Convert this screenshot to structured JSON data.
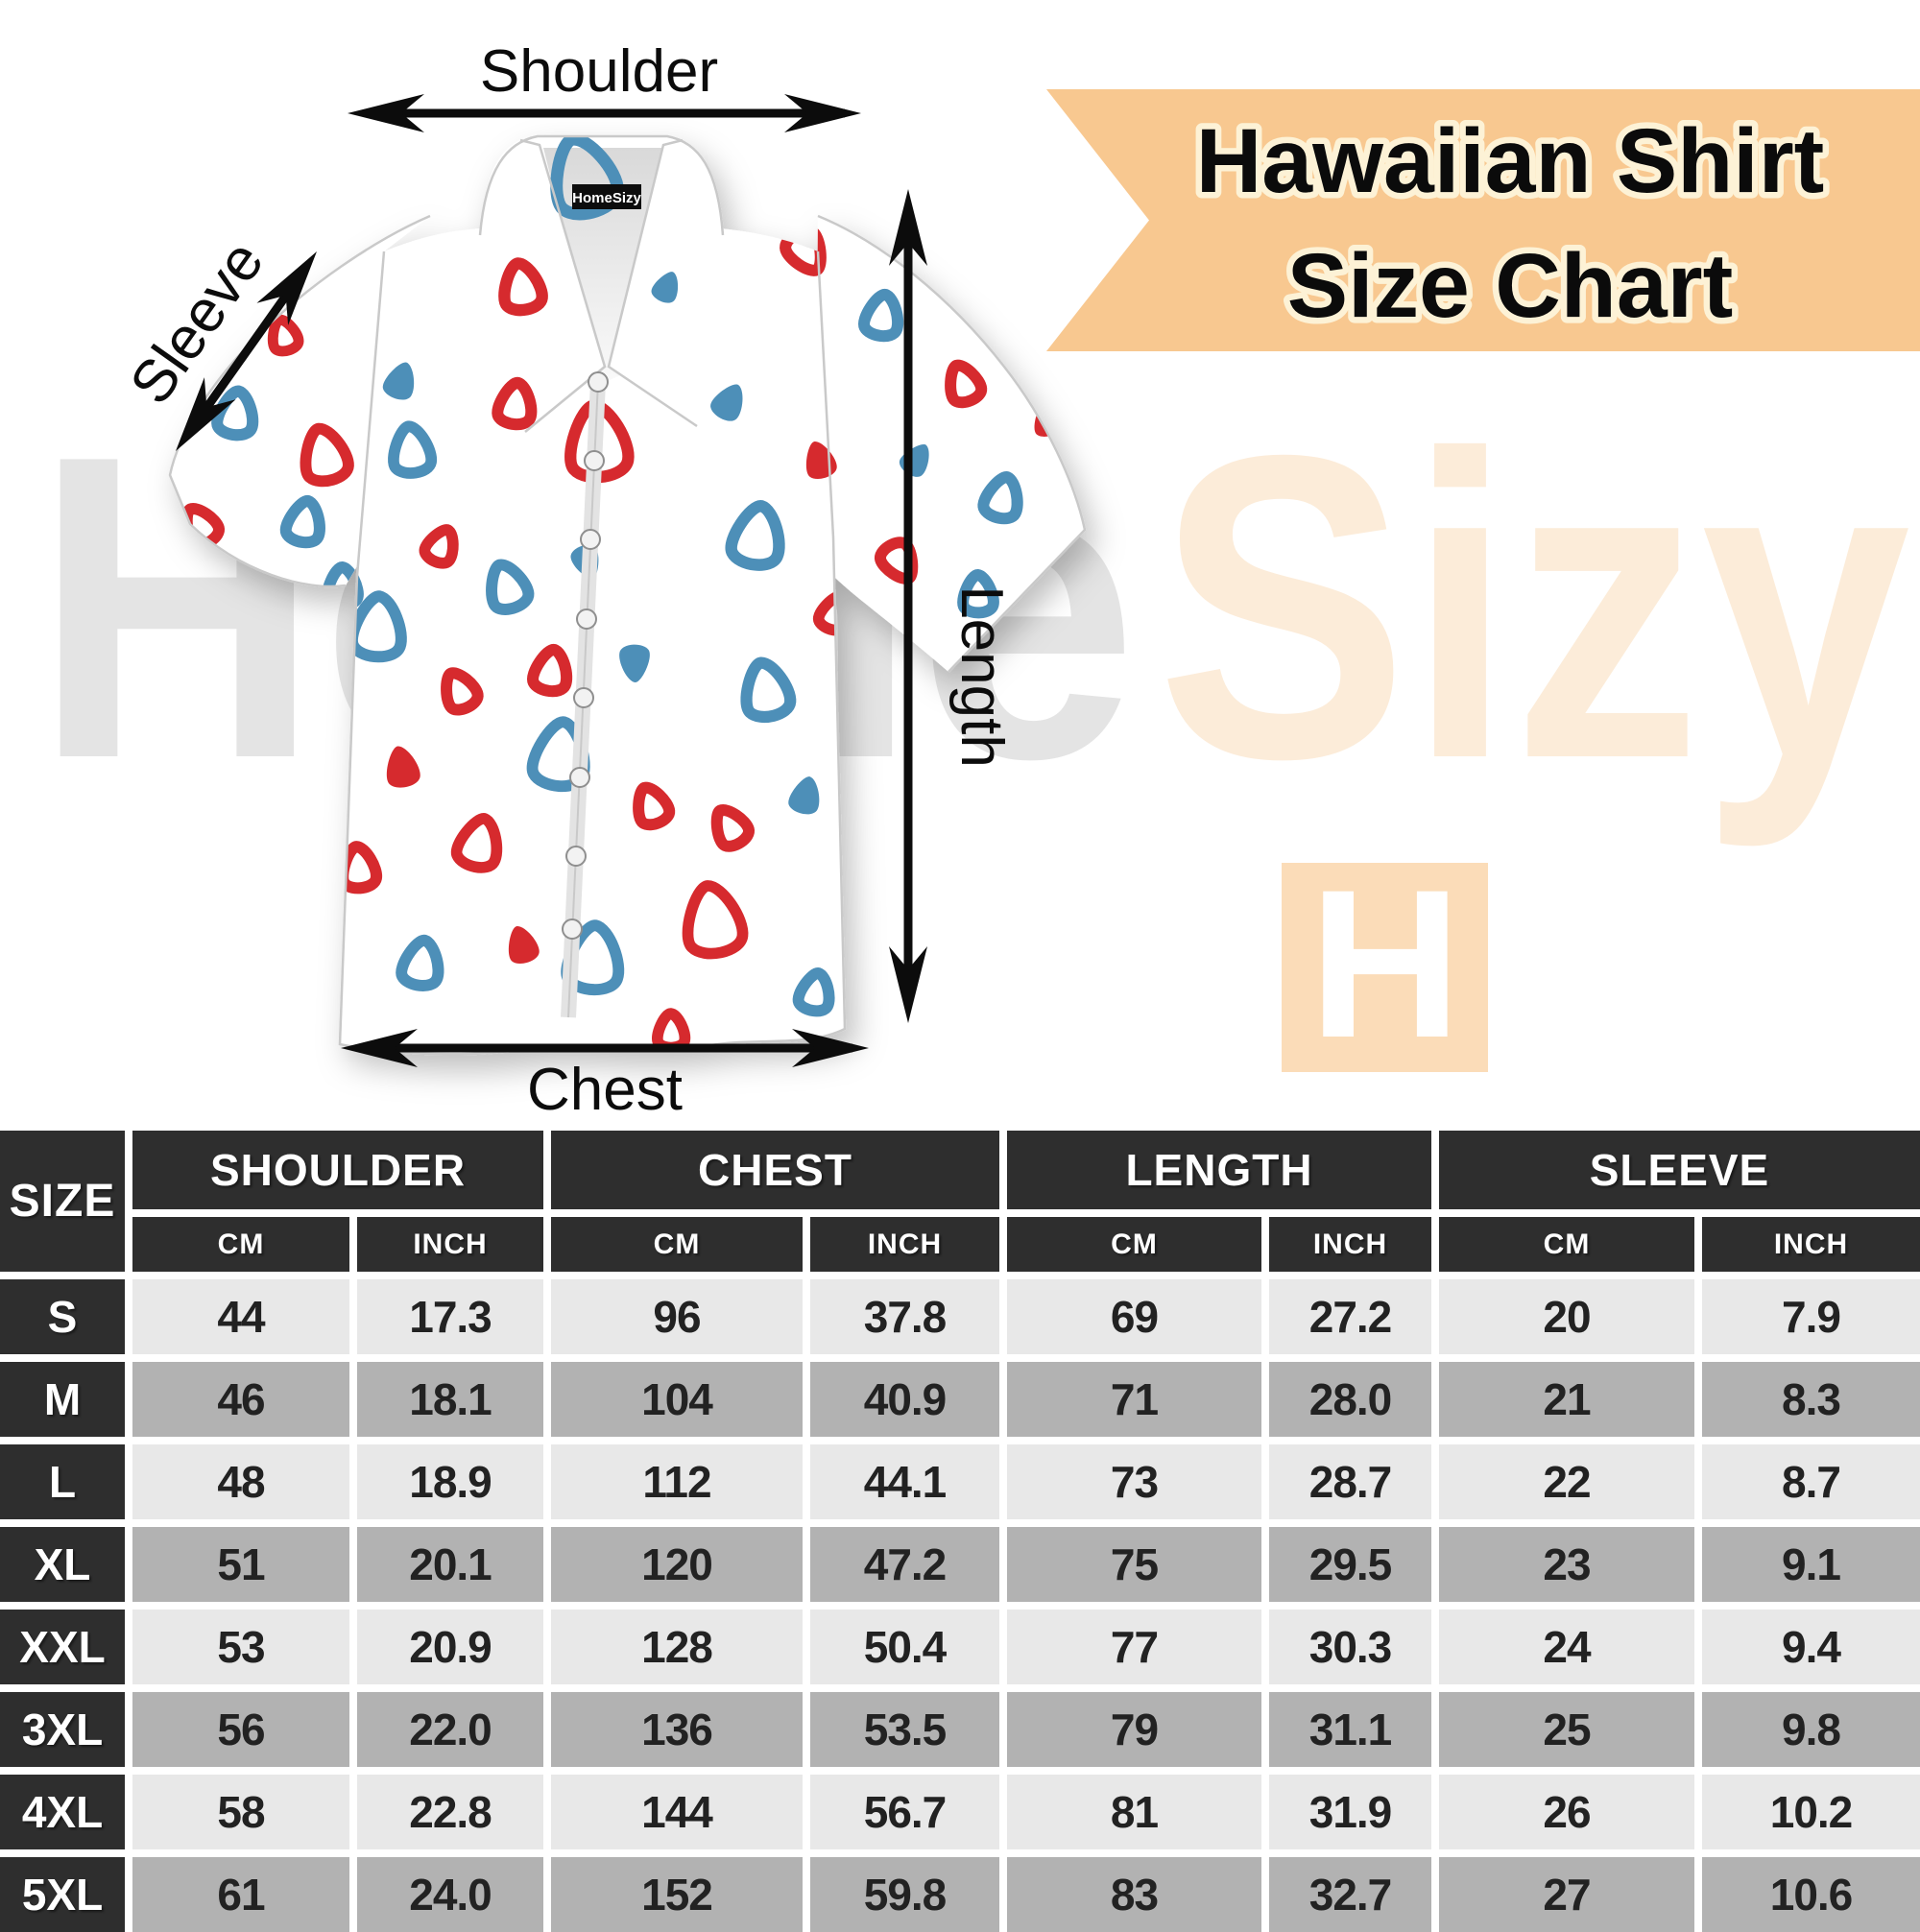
{
  "title": {
    "line1": "Hawaiian Shirt",
    "line2": "Size Chart"
  },
  "watermark": {
    "front": "Home",
    "back": "Sizy",
    "logo_letter": "H"
  },
  "diagram": {
    "shirt_tag": "HomeSizy",
    "labels": {
      "shoulder": "Shoulder",
      "sleeve": "Sleeve",
      "length": "Length",
      "chest": "Chest"
    }
  },
  "table": {
    "size_header": "SIZE",
    "groups": [
      "SHOULDER",
      "CHEST",
      "LENGTH",
      "SLEEVE"
    ],
    "unit_cm": "CM",
    "unit_inch": "INCH",
    "rows": [
      {
        "size": "S",
        "values": [
          "44",
          "17.3",
          "96",
          "37.8",
          "69",
          "27.2",
          "20",
          "7.9"
        ]
      },
      {
        "size": "M",
        "values": [
          "46",
          "18.1",
          "104",
          "40.9",
          "71",
          "28.0",
          "21",
          "8.3"
        ]
      },
      {
        "size": "L",
        "values": [
          "48",
          "18.9",
          "112",
          "44.1",
          "73",
          "28.7",
          "22",
          "8.7"
        ]
      },
      {
        "size": "XL",
        "values": [
          "51",
          "20.1",
          "120",
          "47.2",
          "75",
          "29.5",
          "23",
          "9.1"
        ]
      },
      {
        "size": "XXL",
        "values": [
          "53",
          "20.9",
          "128",
          "50.4",
          "77",
          "30.3",
          "24",
          "9.4"
        ]
      },
      {
        "size": "3XL",
        "values": [
          "56",
          "22.0",
          "136",
          "53.5",
          "79",
          "31.1",
          "25",
          "9.8"
        ]
      },
      {
        "size": "4XL",
        "values": [
          "58",
          "22.8",
          "144",
          "56.7",
          "81",
          "31.9",
          "26",
          "10.2"
        ]
      },
      {
        "size": "5XL",
        "values": [
          "61",
          "24.0",
          "152",
          "59.8",
          "83",
          "32.7",
          "27",
          "10.6"
        ]
      }
    ]
  },
  "colors": {
    "banner_bg": "#f8c890",
    "banner_text_outline": "#fdf2d6",
    "watermark_gray": "#e4e4e4",
    "watermark_peach": "#fcecd9",
    "logo_peach": "#fbdcb8",
    "pattern_red": "#d62b2f",
    "pattern_blue": "#4e8fb8",
    "table_header_bg": "#2e2e2e",
    "row_light": "#e8e8e8",
    "row_dark": "#b2b2b2"
  }
}
